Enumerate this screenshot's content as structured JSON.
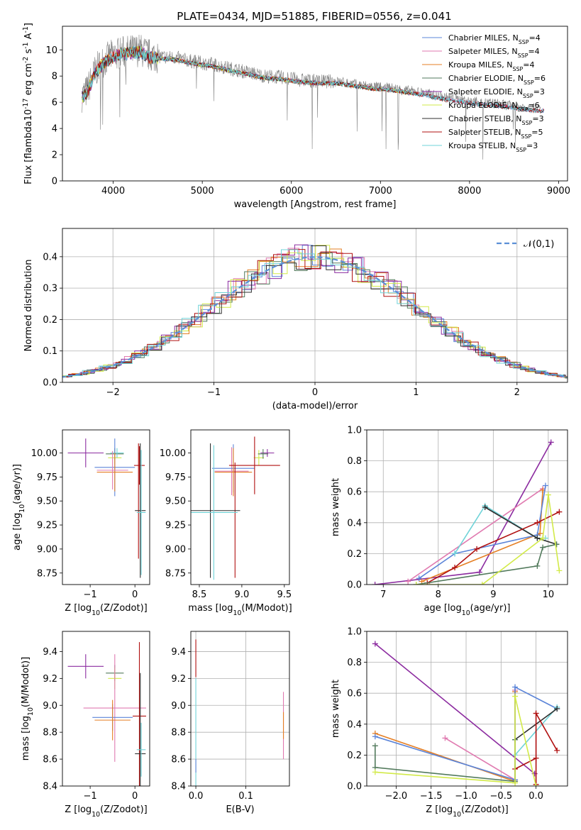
{
  "figure": {
    "title": "PLATE=0434, MJD=51885, FIBERID=0556, z=0.041"
  },
  "chart_data": [
    {
      "id": "spectrum",
      "type": "line",
      "xlabel": "wavelength [Angstrom, rest frame]",
      "ylabel": "Flux [f$_\\lambda$10$^{-17}$ erg cm$^{-2}$ s$^{-1}$ A$^{-1}$]",
      "xlim": [
        3430,
        9100
      ],
      "ylim": [
        0,
        11.8
      ],
      "xticks": [
        4000,
        5000,
        6000,
        7000,
        8000,
        9000
      ],
      "yticks": [
        0,
        2,
        4,
        6,
        8,
        10
      ],
      "legend": "top-right",
      "data_trace": {
        "color": "#808080",
        "x": [
          3650,
          3700,
          3750,
          3800,
          3850,
          3900,
          3950,
          4000,
          4100,
          4200,
          4300,
          4400,
          4500,
          4700,
          4900,
          5100,
          5300,
          5500,
          5700,
          5900,
          6100,
          6300,
          6500,
          6700,
          6900,
          7100,
          7300,
          7500,
          7700,
          7900,
          8100,
          8300,
          8500,
          8800
        ],
        "y": [
          6.5,
          6.8,
          7.6,
          8.4,
          8.8,
          9.2,
          9.4,
          9.6,
          9.8,
          9.9,
          10.0,
          9.6,
          9.5,
          9.4,
          9.1,
          8.9,
          8.6,
          8.3,
          8.0,
          7.9,
          7.7,
          7.6,
          7.6,
          7.4,
          7.2,
          7.1,
          6.9,
          6.7,
          6.4,
          6.2,
          6.0,
          5.9,
          5.7,
          5.5
        ]
      },
      "series": [
        {
          "name": "Chabrier MILES, N$_{SSP}$=4",
          "color": "#5b84d8",
          "end": 8840
        },
        {
          "name": "Salpeter MILES, N$_{SSP}$=4",
          "color": "#e07ab0",
          "end": 8840
        },
        {
          "name": "Kroupa MILES, N$_{SSP}$=4",
          "color": "#e57f24",
          "end": 7420
        },
        {
          "name": "Chabrier ELODIE, N$_{SSP}$=6",
          "color": "#527a5c",
          "end": 7420
        },
        {
          "name": "Salpeter ELODIE, N$_{SSP}$=3",
          "color": "#8c2ca0",
          "end": 7420
        },
        {
          "name": "Kroupa ELODIE, N$_{SSP}$=6",
          "color": "#d2ea49",
          "end": 7420
        },
        {
          "name": "Chabrier STELIB, N$_{SSP}$=3",
          "color": "#2f2f2f",
          "end": 8840
        },
        {
          "name": "Salpeter STELIB, N$_{SSP}$=5",
          "color": "#b01010",
          "end": 8840
        },
        {
          "name": "Kroupa STELIB, N$_{SSP}$=3",
          "color": "#6fd3d8",
          "end": 8840
        }
      ]
    },
    {
      "id": "residuals",
      "type": "histogram",
      "xlabel": "(data-model)/error",
      "ylabel": "Normed distribution",
      "xlim": [
        -2.5,
        2.5
      ],
      "ylim": [
        0,
        0.49
      ],
      "xticks": [
        -2,
        -1,
        0,
        1,
        2
      ],
      "yticks": [
        0.0,
        0.1,
        0.2,
        0.3,
        0.4
      ],
      "grid": true,
      "legend": "top-right",
      "reference": {
        "name": "$\\mathcal{N}(0,1)$",
        "color": "#5b8fd6",
        "dash": true
      }
    },
    {
      "id": "age-vs-Z",
      "type": "errorbar",
      "xlabel": "Z [log$_{10}$(Z/Z$_\\odot$)]",
      "ylabel": "age  [log$_{10}$(age/yr)]",
      "xlim": [
        -1.62,
        0.33
      ],
      "ylim": [
        8.63,
        10.24
      ],
      "xticks": [
        -1,
        0
      ],
      "yticks": [
        8.75,
        9.0,
        9.25,
        9.5,
        9.75,
        10.0
      ],
      "points": [
        {
          "color": "#8c2ca0",
          "x": -1.1,
          "xerr": 0.4,
          "y": 10.0,
          "yerr": 0.15
        },
        {
          "color": "#527a5c",
          "x": -0.45,
          "xerr": 0.2,
          "y": 9.99,
          "yerr": 0.06
        },
        {
          "color": "#d2ea49",
          "x": -0.45,
          "xerr": 0.15,
          "y": 9.95,
          "yerr": 0.07
        },
        {
          "color": "#6fd3d8",
          "x": -0.4,
          "xerr": 0.15,
          "y": 10.0,
          "yerr": 0.05
        },
        {
          "color": "#5b84d8",
          "x": -0.45,
          "xerr": 0.45,
          "y": 9.85,
          "yerr": 0.3
        },
        {
          "color": "#e57f24",
          "x": -0.45,
          "xerr": 0.4,
          "y": 9.8,
          "yerr": 0.2
        },
        {
          "color": "#e07ab0",
          "x": -0.5,
          "xerr": 0.35,
          "y": 9.82,
          "yerr": 0.2
        },
        {
          "color": "#b01010",
          "x": 0.1,
          "xerr": 0.12,
          "y": 9.87,
          "yerr": 0.2
        },
        {
          "color": "#b01010",
          "x": 0.08,
          "xerr": 0.0,
          "y": 9.5,
          "yerr": 0.6
        },
        {
          "color": "#2f2f2f",
          "x": 0.12,
          "xerr": 0.12,
          "y": 9.4,
          "yerr": 0.7
        },
        {
          "color": "#6fd3d8",
          "x": 0.14,
          "xerr": 0.1,
          "y": 9.38,
          "yerr": 0.65
        }
      ]
    },
    {
      "id": "age-vs-mass",
      "type": "errorbar",
      "xlabel": "mass [log$_{10}$(M/M$_\\odot$)]",
      "ylabel": "",
      "xlim": [
        8.4,
        9.56
      ],
      "ylim": [
        8.63,
        10.24
      ],
      "xticks": [
        8.5,
        9.0,
        9.5
      ],
      "yticks": [
        8.75,
        9.0,
        9.25,
        9.5,
        9.75,
        10.0
      ],
      "points": [
        {
          "color": "#8c2ca0",
          "x": 9.3,
          "xerr": 0.08,
          "y": 10.0,
          "yerr": 0.04
        },
        {
          "color": "#d2ea49",
          "x": 9.2,
          "xerr": 0.06,
          "y": 9.95,
          "yerr": 0.08
        },
        {
          "color": "#527a5c",
          "x": 9.25,
          "xerr": 0.06,
          "y": 9.99,
          "yerr": 0.05
        },
        {
          "color": "#e07ab0",
          "x": 8.88,
          "xerr": 0.2,
          "y": 9.81,
          "yerr": 0.25
        },
        {
          "color": "#5b84d8",
          "x": 8.9,
          "xerr": 0.25,
          "y": 9.84,
          "yerr": 0.25
        },
        {
          "color": "#e57f24",
          "x": 8.9,
          "xerr": 0.22,
          "y": 9.8,
          "yerr": 0.25
        },
        {
          "color": "#b01010",
          "x": 9.15,
          "xerr": 0.3,
          "y": 9.87,
          "yerr": 0.3
        },
        {
          "color": "#b01010",
          "x": 8.92,
          "xerr": 0.0,
          "y": 9.3,
          "yerr": 0.6
        },
        {
          "color": "#2f2f2f",
          "x": 8.63,
          "xerr": 0.35,
          "y": 9.4,
          "yerr": 0.7
        },
        {
          "color": "#6fd3d8",
          "x": 8.67,
          "xerr": 0.28,
          "y": 9.38,
          "yerr": 0.7
        }
      ]
    },
    {
      "id": "weight-vs-age",
      "type": "line",
      "xlabel": "age  [log$_{10}$(age/yr)]",
      "ylabel": "mass weight",
      "xlim": [
        6.7,
        10.35
      ],
      "ylim": [
        0,
        1.0
      ],
      "xticks": [
        7,
        8,
        9,
        10
      ],
      "yticks": [
        0.0,
        0.2,
        0.4,
        0.6,
        0.8,
        1.0
      ],
      "grid": true,
      "series": [
        {
          "color": "#8c2ca0",
          "x": [
            6.85,
            8.75,
            10.05
          ],
          "y": [
            0.0,
            0.08,
            0.92
          ]
        },
        {
          "color": "#e07ab0",
          "x": [
            7.45,
            9.9
          ],
          "y": [
            0.02,
            0.62
          ]
        },
        {
          "color": "#e57f24",
          "x": [
            7.7,
            9.85,
            9.9
          ],
          "y": [
            0.02,
            0.33,
            0.61
          ]
        },
        {
          "color": "#5b84d8",
          "x": [
            7.65,
            8.3,
            9.8,
            9.95
          ],
          "y": [
            0.04,
            0.2,
            0.32,
            0.64
          ]
        },
        {
          "color": "#6fd3d8",
          "x": [
            8.3,
            8.85,
            9.8,
            9.95
          ],
          "y": [
            0.2,
            0.51,
            0.3,
            0.3
          ]
        },
        {
          "color": "#2f2f2f",
          "x": [
            8.85,
            9.8,
            10.15
          ],
          "y": [
            0.5,
            0.3,
            0.26
          ]
        },
        {
          "color": "#b01010",
          "x": [
            7.8,
            8.3,
            8.7,
            9.8,
            10.2
          ],
          "y": [
            0.01,
            0.11,
            0.23,
            0.4,
            0.47
          ]
        },
        {
          "color": "#527a5c",
          "x": [
            7.6,
            9.8,
            9.9,
            10.15
          ],
          "y": [
            0.0,
            0.12,
            0.24,
            0.26
          ]
        },
        {
          "color": "#d2ea49",
          "x": [
            7.6,
            8.8,
            9.9,
            10.0,
            10.2
          ],
          "y": [
            0.0,
            0.0,
            0.3,
            0.58,
            0.09
          ]
        }
      ]
    },
    {
      "id": "mass-vs-Z",
      "type": "errorbar",
      "xlabel": "Z [log$_{10}$(Z/Z$_\\odot$)]",
      "ylabel": "mass [log$_{10}$(M/M$_\\odot$)]",
      "xlim": [
        -1.62,
        0.33
      ],
      "ylim": [
        8.4,
        9.55
      ],
      "xticks": [
        -1,
        0
      ],
      "yticks": [
        8.4,
        8.6,
        8.8,
        9.0,
        9.2,
        9.4
      ],
      "points": [
        {
          "color": "#8c2ca0",
          "x": -1.1,
          "xerr": 0.4,
          "y": 9.29,
          "yerr": 0.09
        },
        {
          "color": "#527a5c",
          "x": -0.45,
          "xerr": 0.2,
          "y": 9.24,
          "yerr": 0.06
        },
        {
          "color": "#d2ea49",
          "x": -0.45,
          "xerr": 0.15,
          "y": 9.2,
          "yerr": 0.08
        },
        {
          "color": "#e07ab0",
          "x": -0.45,
          "xerr": 0.7,
          "y": 8.98,
          "yerr": 0.4
        },
        {
          "color": "#5b84d8",
          "x": -0.5,
          "xerr": 0.45,
          "y": 8.91,
          "yerr": 0.1
        },
        {
          "color": "#e57f24",
          "x": -0.5,
          "xerr": 0.4,
          "y": 8.89,
          "yerr": 0.15
        },
        {
          "color": "#b01010",
          "x": 0.1,
          "xerr": 0.15,
          "y": 8.92,
          "yerr": 0.55
        },
        {
          "color": "#2f2f2f",
          "x": 0.12,
          "xerr": 0.12,
          "y": 8.64,
          "yerr": 0.6
        },
        {
          "color": "#6fd3d8",
          "x": 0.14,
          "xerr": 0.1,
          "y": 8.67,
          "yerr": 0.2
        }
      ]
    },
    {
      "id": "mass-vs-EBV",
      "type": "errorbar",
      "xlabel": "E(B-V)",
      "ylabel": "",
      "xlim": [
        -0.01,
        0.187
      ],
      "ylim": [
        8.4,
        9.55
      ],
      "xticks": [
        0.0,
        0.1
      ],
      "yticks": [
        8.4,
        8.6,
        8.8,
        9.0,
        9.2,
        9.4
      ],
      "grid": true,
      "points": [
        {
          "color": "#b01010",
          "x": 0.0,
          "xerr": 0.0,
          "y": 9.35,
          "yerr": 0.14
        },
        {
          "color": "#6fd3d8",
          "x": 0.0,
          "xerr": 0.0,
          "y": 8.8,
          "yerr": 0.4
        },
        {
          "color": "#5b84d8",
          "x": 0.0,
          "xerr": 0.0,
          "y": 8.55,
          "yerr": 0.05
        },
        {
          "color": "#e07ab0",
          "x": 0.175,
          "xerr": 0.0,
          "y": 8.85,
          "yerr": 0.25
        },
        {
          "color": "#e57f24",
          "x": 0.175,
          "xerr": 0.0,
          "y": 8.85,
          "yerr": 0.1
        }
      ]
    },
    {
      "id": "weight-vs-Z",
      "type": "line",
      "xlabel": "Z [log$_{10}$(Z/Z$_\\odot$)]",
      "ylabel": "mass weight",
      "xlim": [
        -2.42,
        0.45
      ],
      "ylim": [
        0,
        1.0
      ],
      "xticks": [
        -2.0,
        -1.5,
        -1.0,
        -0.5,
        0.0
      ],
      "yticks": [
        0.0,
        0.2,
        0.4,
        0.6,
        0.8,
        1.0
      ],
      "grid": true,
      "series": [
        {
          "color": "#8c2ca0",
          "x": [
            -2.3,
            -0.02
          ],
          "y": [
            0.92,
            0.08
          ]
        },
        {
          "color": "#e07ab0",
          "x": [
            -1.3,
            -0.3,
            -0.3
          ],
          "y": [
            0.31,
            0.04,
            0.62
          ]
        },
        {
          "color": "#e57f24",
          "x": [
            -2.3,
            -0.3,
            -0.3
          ],
          "y": [
            0.34,
            0.03,
            0.61
          ]
        },
        {
          "color": "#5b84d8",
          "x": [
            -2.3,
            -0.3,
            -0.3,
            0.3
          ],
          "y": [
            0.32,
            0.04,
            0.64,
            0.5
          ]
        },
        {
          "color": "#6fd3d8",
          "x": [
            -0.3,
            0.3
          ],
          "y": [
            0.2,
            0.51
          ]
        },
        {
          "color": "#2f2f2f",
          "x": [
            -0.3,
            0.3
          ],
          "y": [
            0.3,
            0.5
          ]
        },
        {
          "color": "#b01010",
          "x": [
            -0.3,
            0.0,
            0.0,
            0.0,
            0.3
          ],
          "y": [
            0.11,
            0.18,
            0.01,
            0.47,
            0.23
          ]
        },
        {
          "color": "#527a5c",
          "x": [
            -2.3,
            -2.3,
            -0.3,
            -0.3
          ],
          "y": [
            0.26,
            0.12,
            0.03,
            0.3
          ]
        },
        {
          "color": "#d2ea49",
          "x": [
            -2.3,
            -0.3,
            -0.3,
            0.0
          ],
          "y": [
            0.09,
            0.02,
            0.58,
            0.0
          ]
        }
      ]
    }
  ]
}
